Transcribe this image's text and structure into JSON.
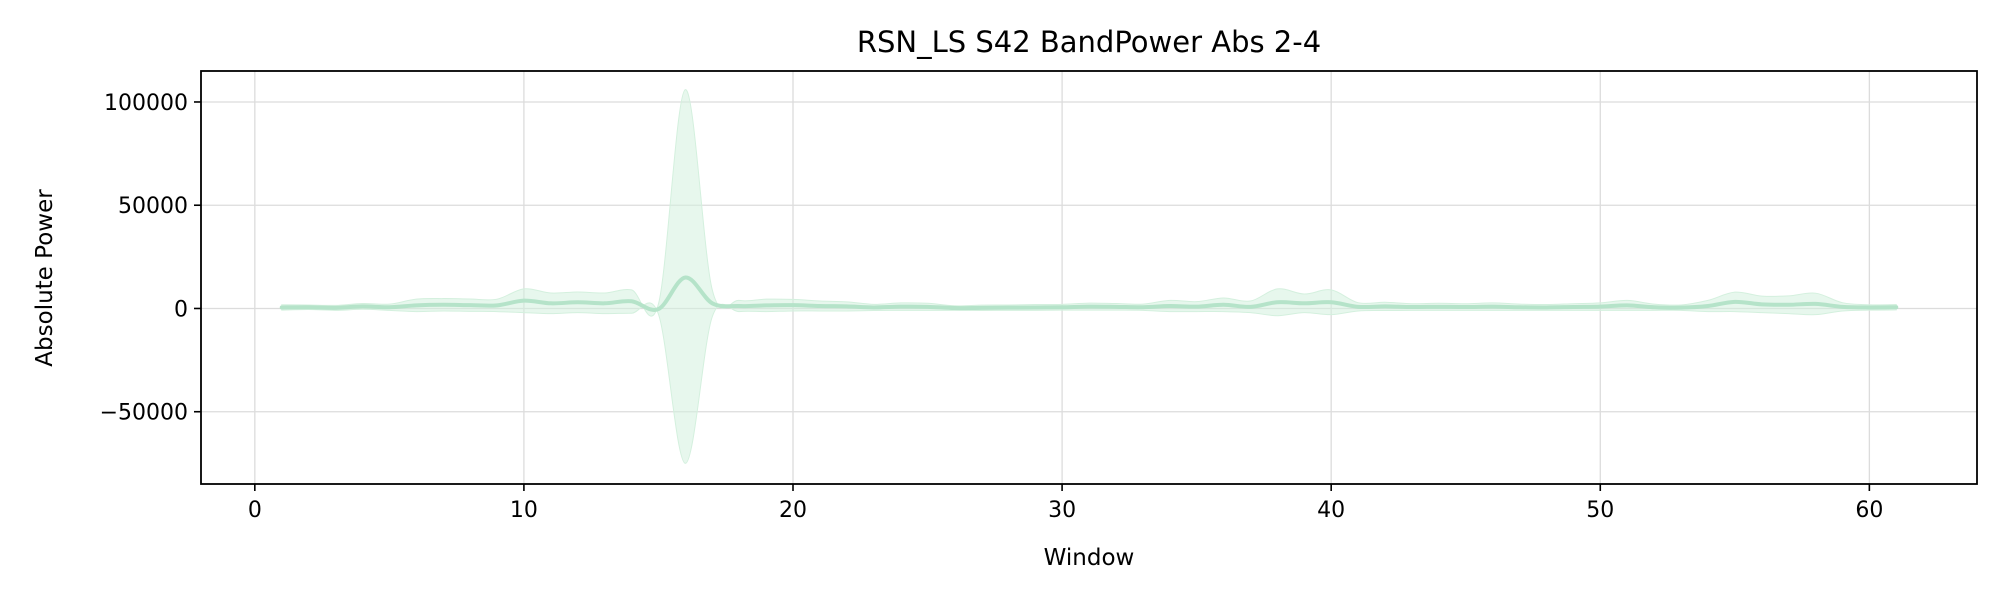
{
  "chart_data": {
    "type": "area",
    "title": "RSN_LS S42 BandPower Abs 2-4",
    "xlabel": "Window",
    "ylabel": "Absolute Power",
    "xlim": [
      -2,
      64
    ],
    "ylim": [
      -85000,
      115000
    ],
    "x_ticks": [
      0,
      10,
      20,
      30,
      40,
      50,
      60
    ],
    "x_tick_labels": [
      "0",
      "10",
      "20",
      "30",
      "40",
      "50",
      "60"
    ],
    "y_ticks": [
      100000,
      50000,
      0,
      -50000
    ],
    "y_tick_labels": [
      "100000",
      "50000",
      "0",
      "−50000"
    ],
    "grid": true,
    "legend": "none",
    "colors": {
      "line": "#b5e3c9",
      "band": "#d4f0de"
    },
    "series": [
      {
        "x": [
          1,
          2,
          3,
          4,
          5,
          6,
          7,
          8,
          9,
          10,
          11,
          12,
          13,
          14,
          15,
          16,
          17,
          18,
          19,
          20,
          21,
          22,
          23,
          24,
          25,
          26,
          27,
          28,
          29,
          30,
          31,
          32,
          33,
          34,
          35,
          36,
          37,
          38,
          39,
          40,
          41,
          42,
          43,
          44,
          45,
          46,
          47,
          48,
          49,
          50,
          51,
          52,
          53,
          54,
          55,
          56,
          57,
          58,
          59,
          60,
          61
        ],
        "mean": [
          500,
          600,
          300,
          1000,
          600,
          1500,
          1800,
          1600,
          1500,
          3800,
          2500,
          3000,
          2500,
          3500,
          -300,
          15000,
          2500,
          1200,
          1500,
          1600,
          1200,
          1000,
          500,
          900,
          800,
          200,
          300,
          400,
          500,
          600,
          900,
          800,
          600,
          1200,
          900,
          1800,
          800,
          3000,
          2500,
          3000,
          800,
          1000,
          700,
          800,
          700,
          900,
          600,
          500,
          700,
          900,
          1500,
          600,
          400,
          1200,
          3200,
          2000,
          1800,
          2200,
          800,
          500,
          600
        ],
        "lower": [
          -800,
          -500,
          -900,
          -400,
          -900,
          -1500,
          -1200,
          -1400,
          -1500,
          -2000,
          -2500,
          -2000,
          -2500,
          -2300,
          -2800,
          -75000,
          -4000,
          -1500,
          -1500,
          -1200,
          -1200,
          -1200,
          -1000,
          -900,
          -900,
          -900,
          -1000,
          -900,
          -900,
          -800,
          -800,
          -800,
          -900,
          -1500,
          -1500,
          -1500,
          -2000,
          -3500,
          -2000,
          -3000,
          -1200,
          -1000,
          -900,
          -900,
          -900,
          -900,
          -900,
          -900,
          -900,
          -900,
          -900,
          -900,
          -900,
          -1500,
          -1500,
          -2000,
          -2500,
          -3000,
          -1200,
          -800,
          -700
        ],
        "upper": [
          1800,
          1700,
          1500,
          2400,
          2100,
          4500,
          4800,
          4600,
          4500,
          9500,
          7500,
          8000,
          7500,
          9000,
          2200,
          106000,
          9000,
          3900,
          4500,
          4400,
          3600,
          3200,
          2000,
          2700,
          2500,
          1300,
          1600,
          1700,
          1900,
          2000,
          2600,
          2400,
          2100,
          3900,
          3300,
          5100,
          3600,
          9500,
          7000,
          9000,
          2800,
          3000,
          2300,
          2500,
          2300,
          2700,
          2100,
          1900,
          2300,
          2700,
          3900,
          2100,
          1700,
          3900,
          7900,
          6000,
          6100,
          7400,
          2800,
          1800,
          1900
        ]
      }
    ]
  }
}
